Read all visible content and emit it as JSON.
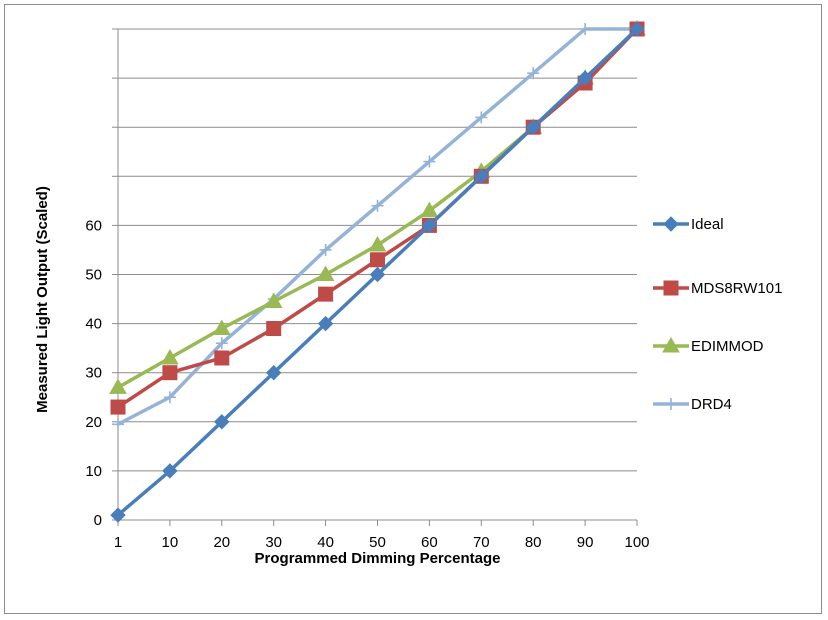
{
  "chart_data": {
    "type": "line",
    "title": "",
    "xlabel": "Programmed Dimming Percentage",
    "ylabel": "Measured Light Output (Scaled)",
    "categories": [
      "1",
      "10",
      "20",
      "30",
      "40",
      "50",
      "60",
      "70",
      "80",
      "90",
      "100"
    ],
    "y_tick_labels": [
      "0",
      "10",
      "20",
      "30",
      "40",
      "50",
      "60"
    ],
    "ylim": [
      0,
      100
    ],
    "grid": true,
    "legend_position": "right",
    "series": [
      {
        "name": "Ideal",
        "color": "#4a7ebb",
        "marker": "diamond",
        "values": [
          1,
          10,
          20,
          30,
          40,
          50,
          60,
          70,
          80,
          90,
          100
        ]
      },
      {
        "name": "MDS8RW101",
        "color": "#be4b48",
        "marker": "square",
        "values": [
          23,
          30,
          33,
          39,
          46,
          53,
          60,
          70,
          80,
          89,
          100
        ]
      },
      {
        "name": "EDIMMOD",
        "color": "#98b954",
        "marker": "triangle",
        "values": [
          27,
          33,
          39,
          44.5,
          50,
          56,
          63,
          71,
          80,
          90,
          100
        ]
      },
      {
        "name": "DRD4",
        "color": "#95b3d7",
        "marker": "plus",
        "values": [
          19.5,
          25,
          36,
          45,
          55,
          64,
          73,
          82,
          91,
          100,
          100
        ]
      }
    ]
  }
}
